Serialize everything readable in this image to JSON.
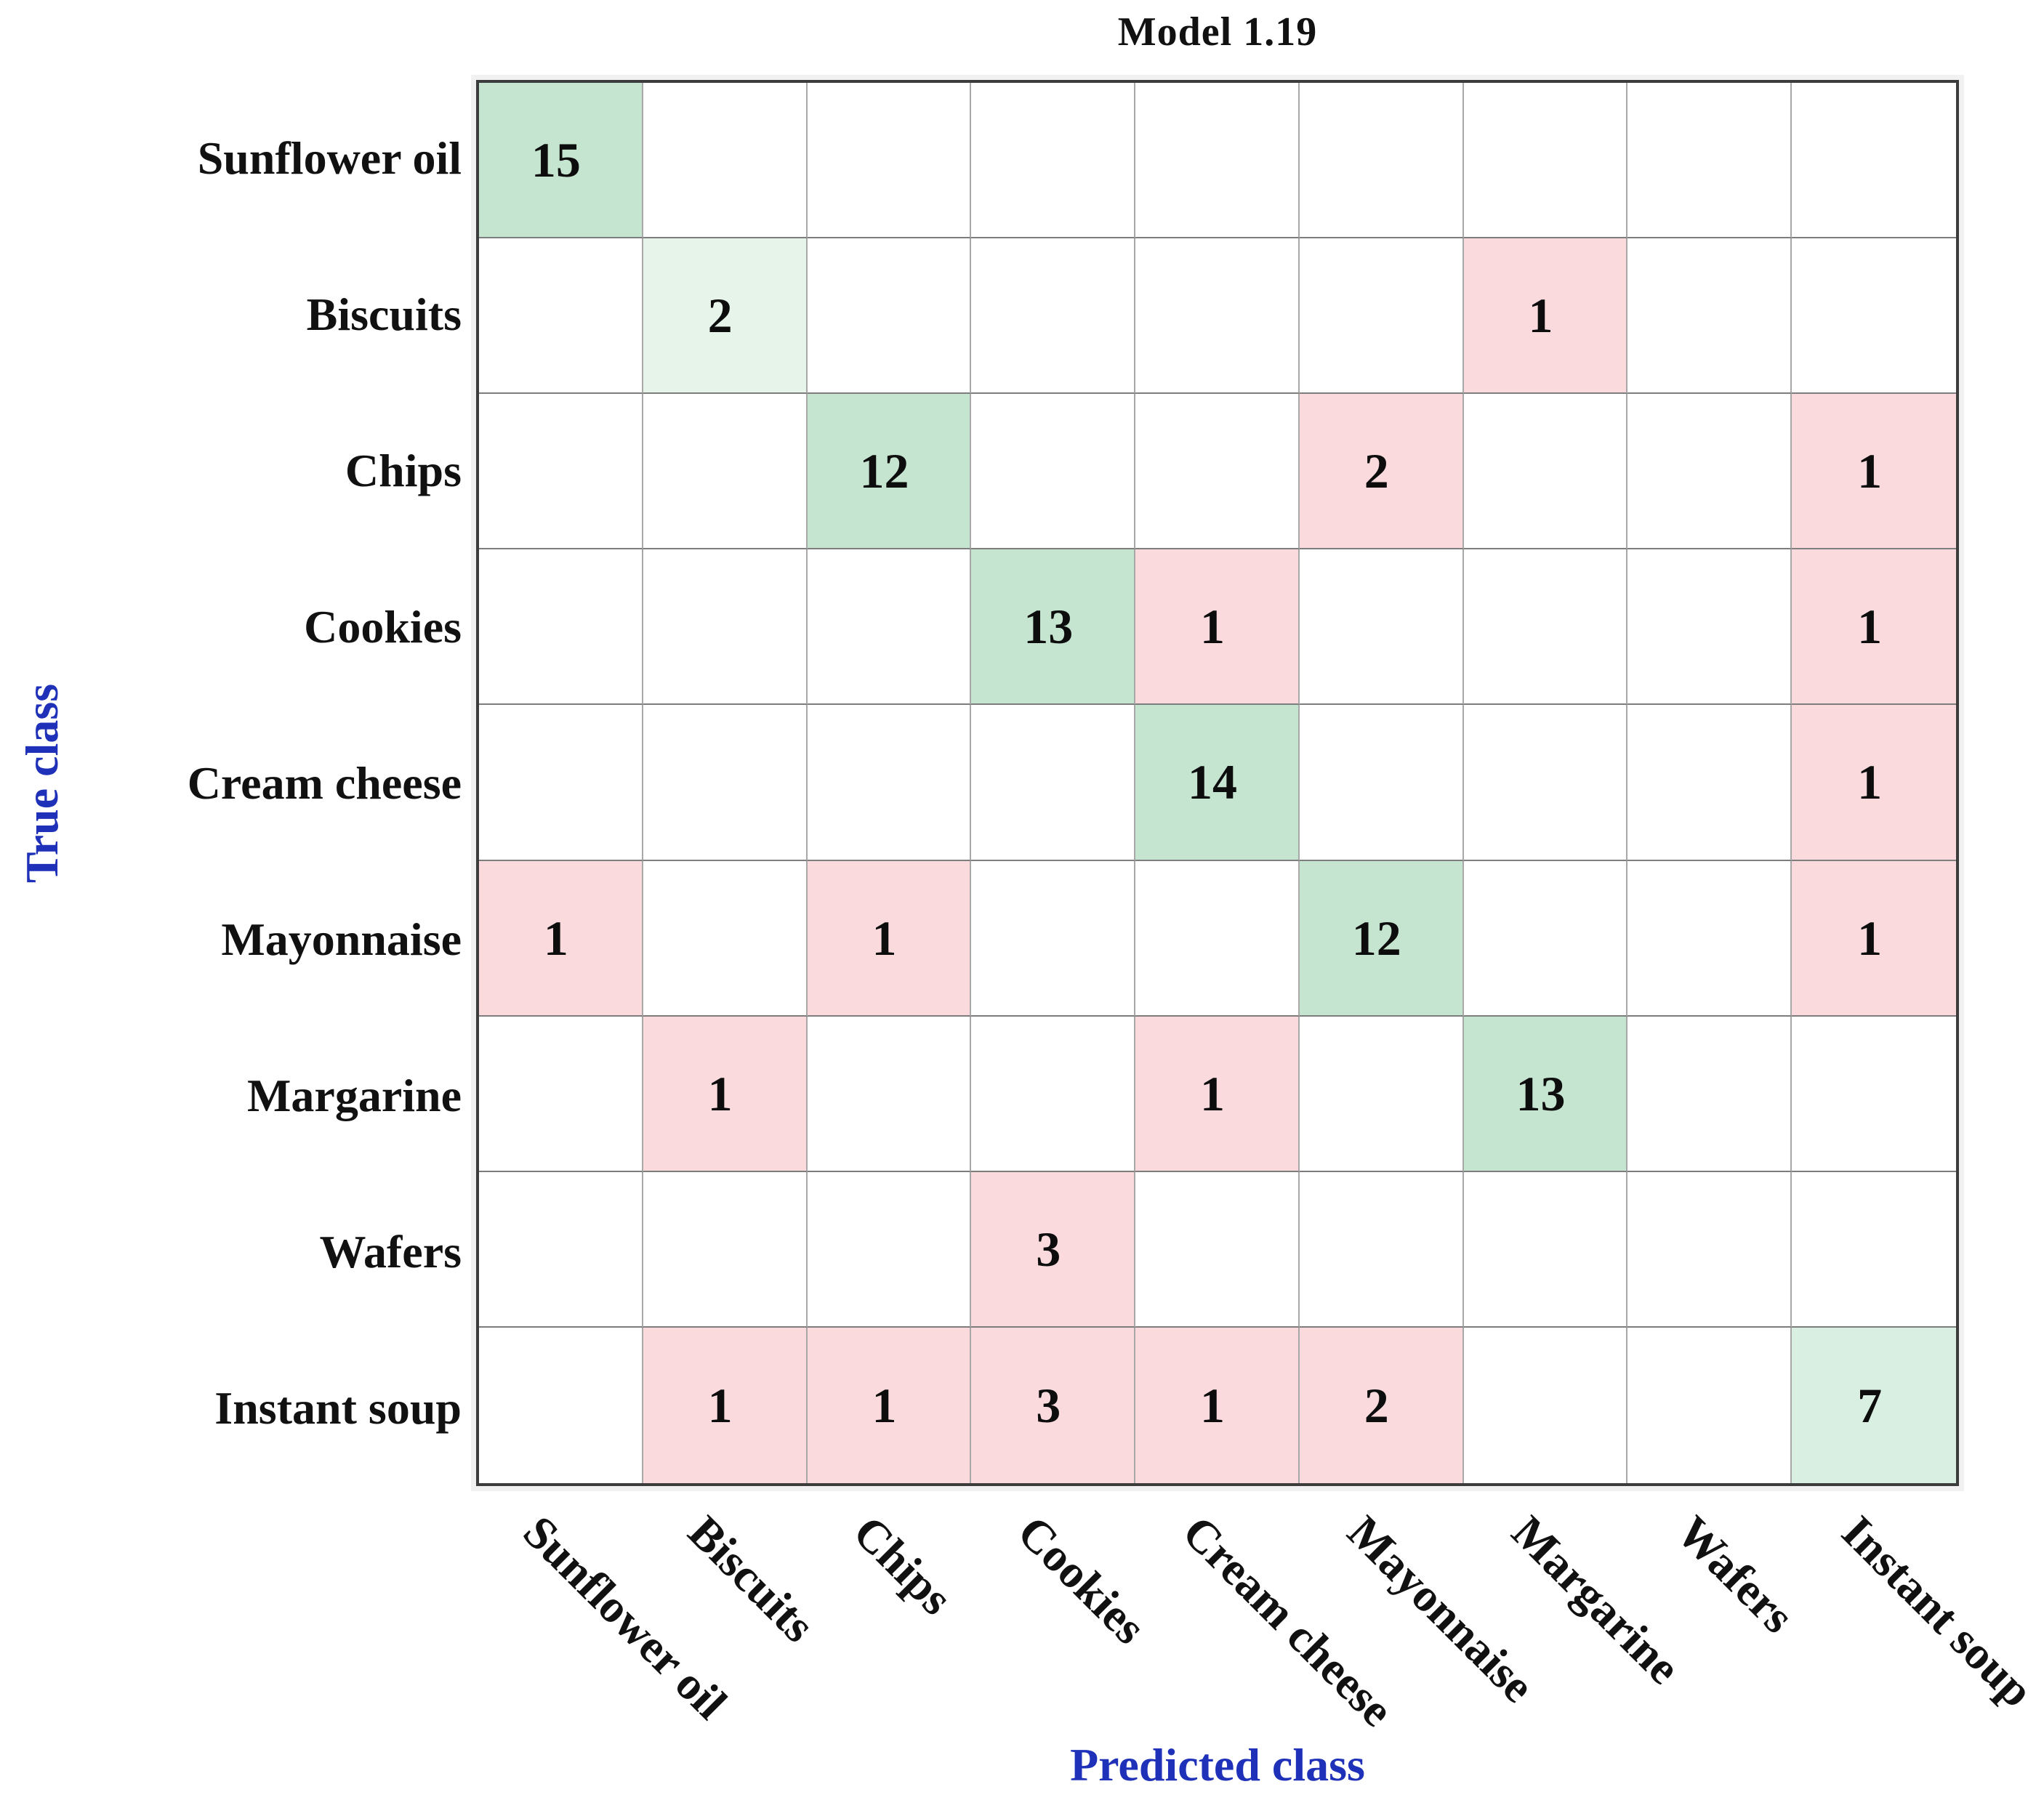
{
  "title": "Model 1.19",
  "axes": {
    "x_label": "Predicted class",
    "y_label": "True class"
  },
  "classes": [
    "Sunflower oil",
    "Biscuits",
    "Chips",
    "Cookies",
    "Cream cheese",
    "Mayonnaise",
    "Margarine",
    "Wafers",
    "Instant soup"
  ],
  "chart_data": {
    "type": "heatmap",
    "subtype": "confusion-matrix",
    "title": "Model 1.19",
    "xlabel": "Predicted class",
    "ylabel": "True class",
    "categories": [
      "Sunflower oil",
      "Biscuits",
      "Chips",
      "Cookies",
      "Cream cheese",
      "Mayonnaise",
      "Margarine",
      "Wafers",
      "Instant soup"
    ],
    "matrix": [
      [
        15,
        null,
        null,
        null,
        null,
        null,
        null,
        null,
        null
      ],
      [
        null,
        2,
        null,
        null,
        null,
        null,
        1,
        null,
        null
      ],
      [
        null,
        null,
        12,
        null,
        null,
        2,
        null,
        null,
        1
      ],
      [
        null,
        null,
        null,
        13,
        1,
        null,
        null,
        null,
        1
      ],
      [
        null,
        null,
        null,
        null,
        14,
        null,
        null,
        null,
        1
      ],
      [
        1,
        null,
        1,
        null,
        null,
        12,
        null,
        null,
        1
      ],
      [
        null,
        1,
        null,
        null,
        1,
        null,
        13,
        null,
        null
      ],
      [
        null,
        null,
        null,
        3,
        null,
        null,
        null,
        null,
        null
      ],
      [
        null,
        1,
        1,
        3,
        1,
        2,
        null,
        null,
        7
      ]
    ],
    "legend": "none",
    "grid": true
  },
  "colors": {
    "correct_high": "#c6e5d0",
    "correct_mid": "#d9efe1",
    "correct_low": "#e6f4ea",
    "error": "#fadadd",
    "empty": "#ffffff",
    "axis_label": "#1e31b8",
    "grid_line_v": "#a8a8a8",
    "grid_line_h": "#7d7d7d",
    "border": "#3c3c3c",
    "text": "#111111"
  }
}
